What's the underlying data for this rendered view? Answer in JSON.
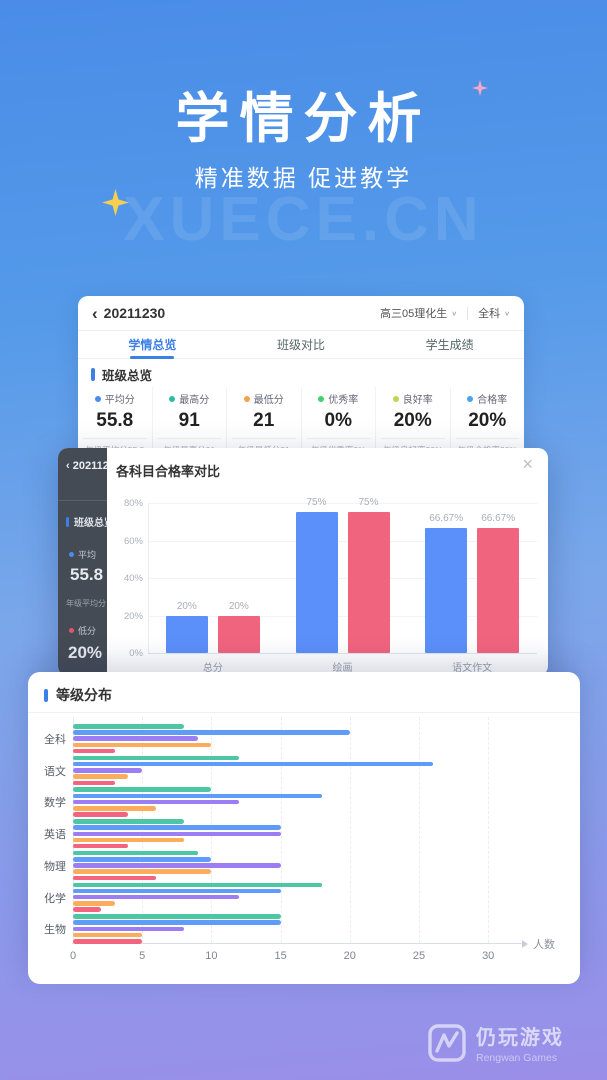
{
  "hero": {
    "title": "学情分析",
    "subtitle": "精准数据 促进教学",
    "watermark": "XUECE.CN"
  },
  "icons": {
    "back": "‹",
    "chevron_down": "∨",
    "close": "×"
  },
  "colors": {
    "bg_top": "#4A8CE8",
    "bg_bottom": "#9A8EE9",
    "accent_blue": "#3D7FE8",
    "bar_blue": "#5B8FF9",
    "bar_pink": "#F1647E"
  },
  "report_card": {
    "title": "20211230",
    "class_selector": "高三05理化生",
    "subject_selector": "全科",
    "tabs": [
      {
        "label": "学情总览",
        "active": true
      },
      {
        "label": "班级对比",
        "active": false
      },
      {
        "label": "学生成绩",
        "active": false
      }
    ],
    "section_title": "班级总览",
    "stats": [
      {
        "label": "平均分",
        "value": "55.8",
        "sub": "年级平均分55.8",
        "dot": "#4A8BF0"
      },
      {
        "label": "最高分",
        "value": "91",
        "sub": "年级最高分91",
        "dot": "#2FBDA2"
      },
      {
        "label": "最低分",
        "value": "21",
        "sub": "年级最低分21",
        "dot": "#F8A04D"
      },
      {
        "label": "优秀率",
        "value": "0%",
        "sub": "年级优秀率0%",
        "dot": "#43D16D"
      },
      {
        "label": "良好率",
        "value": "20%",
        "sub": "年级良好率20%",
        "dot": "#C0D650"
      },
      {
        "label": "合格率",
        "value": "20%",
        "sub": "年级合格率20%",
        "dot": "#4AA2F2"
      }
    ]
  },
  "modal_card": {
    "title": "各科目合格率对比",
    "dimmed": {
      "header": "202112",
      "section": "班级总览",
      "stat1_label": "平均",
      "stat1_value": "55.8",
      "stat1_sub": "年级平均分",
      "stat1_dot": "#4A8BF0",
      "stat2_label": "低分",
      "stat2_value": "20%",
      "stat2_dot": "#E0566B"
    }
  },
  "grade_card": {
    "title": "等级分布"
  },
  "chart_data": [
    {
      "type": "bar",
      "title": "各科目合格率对比",
      "categories": [
        "总分",
        "绘画",
        "语文作文"
      ],
      "series": [
        {
          "color": "#5B8FF9",
          "values": [
            20,
            75,
            66.67
          ],
          "labels": [
            "20%",
            "75%",
            "66.67%"
          ]
        },
        {
          "color": "#F1647E",
          "values": [
            20,
            75,
            66.67
          ],
          "labels": [
            "20%",
            "75%",
            "66.67%"
          ]
        }
      ],
      "ylim": [
        0,
        80
      ],
      "yticks": [
        "0%",
        "20%",
        "40%",
        "60%",
        "80%"
      ],
      "grid": true,
      "legend": false
    },
    {
      "type": "bar-horizontal",
      "title": "等级分布",
      "categories": [
        "全科",
        "语文",
        "数学",
        "英语",
        "物理",
        "化学",
        "生物"
      ],
      "series": [
        {
          "color": "#4DC6A3",
          "values": [
            8,
            12,
            10,
            8,
            9,
            18,
            15
          ]
        },
        {
          "color": "#5F9BF8",
          "values": [
            20,
            26,
            18,
            15,
            10,
            15,
            15
          ]
        },
        {
          "color": "#9D7DF3",
          "values": [
            9,
            5,
            12,
            15,
            15,
            12,
            8
          ]
        },
        {
          "color": "#FBAD5C",
          "values": [
            10,
            4,
            6,
            8,
            10,
            3,
            5
          ]
        },
        {
          "color": "#F3657E",
          "values": [
            3,
            3,
            4,
            4,
            6,
            2,
            5
          ]
        }
      ],
      "xlim": [
        0,
        30
      ],
      "xticks": [
        0,
        5,
        10,
        15,
        20,
        25,
        30
      ],
      "xlabel": "人数",
      "grid": true,
      "legend": false
    }
  ],
  "footer_logo": {
    "cn": "仍玩游戏",
    "en": "Rengwan Games"
  }
}
